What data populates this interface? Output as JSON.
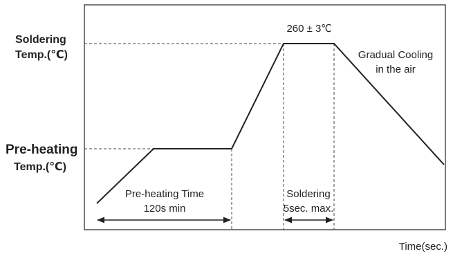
{
  "diagram": {
    "y_labels": {
      "soldering_temp_line1": "Soldering",
      "soldering_temp_line2": "Temp.(℃)",
      "preheating_temp_line1": "Pre-heating",
      "preheating_temp_line2": "Temp.(℃)"
    },
    "peak_label": "260 ± 3℃",
    "cooling_label_line1": "Gradual Cooling",
    "cooling_label_line2": "in the air",
    "preheat_time_line1": "Pre-heating Time",
    "preheat_time_line2": "120s min",
    "soldering_time_line1": "Soldering",
    "soldering_time_line2": "5sec. max.",
    "x_axis_label": "Time(sec.)"
  },
  "colors": {
    "line": "#222222",
    "dashed": "#444444",
    "frame": "#222222"
  }
}
